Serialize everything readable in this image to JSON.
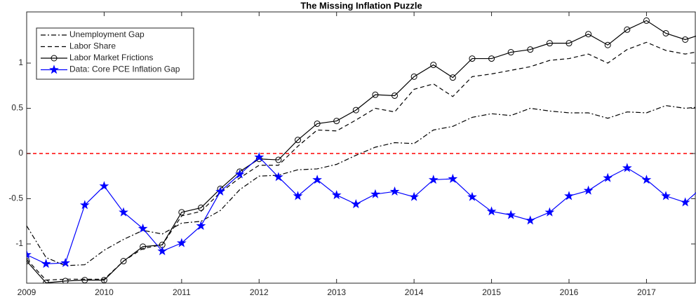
{
  "chart_data": {
    "type": "line",
    "title": "The Missing Inflation Puzzle",
    "x": [
      2009,
      2009.25,
      2009.5,
      2009.75,
      2010,
      2010.25,
      2010.5,
      2010.75,
      2011,
      2011.25,
      2011.5,
      2011.75,
      2012,
      2012.25,
      2012.5,
      2012.75,
      2013,
      2013.25,
      2013.5,
      2013.75,
      2014,
      2014.25,
      2014.5,
      2014.75,
      2015,
      2015.25,
      2015.5,
      2015.75,
      2016,
      2016.25,
      2016.5,
      2016.75,
      2017,
      2017.25,
      2017.5,
      2017.75
    ],
    "series": [
      {
        "name": "Unemployment Gap",
        "color": "#000000",
        "dash": "dashdot",
        "marker": "none",
        "values": [
          -0.8,
          -1.15,
          -1.24,
          -1.23,
          -1.07,
          -0.95,
          -0.85,
          -0.89,
          -0.77,
          -0.75,
          -0.63,
          -0.4,
          -0.25,
          -0.24,
          -0.18,
          -0.17,
          -0.12,
          -0.02,
          0.07,
          0.12,
          0.11,
          0.26,
          0.3,
          0.4,
          0.44,
          0.42,
          0.5,
          0.47,
          0.45,
          0.45,
          0.39,
          0.46,
          0.45,
          0.53,
          0.5,
          0.52
        ]
      },
      {
        "name": "Labor Share",
        "color": "#000000",
        "dash": "dashed",
        "marker": "none",
        "values": [
          -1.17,
          -1.4,
          -1.39,
          -1.39,
          -1.39,
          -1.19,
          -1.05,
          -1.01,
          -0.69,
          -0.64,
          -0.43,
          -0.27,
          -0.13,
          -0.13,
          0.08,
          0.26,
          0.25,
          0.37,
          0.5,
          0.46,
          0.71,
          0.77,
          0.63,
          0.85,
          0.88,
          0.92,
          0.96,
          1.03,
          1.05,
          1.1,
          1.0,
          1.15,
          1.23,
          1.14,
          1.1,
          1.14
        ]
      },
      {
        "name": "Labor Market Frictions",
        "color": "#000000",
        "dash": "solid",
        "marker": "circle",
        "values": [
          -1.19,
          -1.43,
          -1.41,
          -1.4,
          -1.4,
          -1.19,
          -1.03,
          -1.01,
          -0.65,
          -0.6,
          -0.39,
          -0.2,
          -0.06,
          -0.07,
          0.15,
          0.33,
          0.36,
          0.48,
          0.65,
          0.64,
          0.85,
          0.98,
          0.84,
          1.05,
          1.05,
          1.12,
          1.15,
          1.22,
          1.22,
          1.32,
          1.2,
          1.37,
          1.47,
          1.33,
          1.26,
          1.33
        ]
      },
      {
        "name": "Data: Core PCE Inflation Gap",
        "color": "#0000ff",
        "dash": "solid",
        "marker": "star",
        "values": [
          -1.12,
          -1.22,
          -1.21,
          -0.57,
          -0.36,
          -0.65,
          -0.83,
          -1.08,
          -0.99,
          -0.8,
          -0.42,
          -0.23,
          -0.04,
          -0.26,
          -0.47,
          -0.29,
          -0.46,
          -0.56,
          -0.45,
          -0.42,
          -0.48,
          -0.29,
          -0.28,
          -0.48,
          -0.64,
          -0.68,
          -0.74,
          -0.65,
          -0.47,
          -0.41,
          -0.27,
          -0.16,
          -0.29,
          -0.47,
          -0.54,
          -0.35
        ]
      }
    ],
    "reference_line": {
      "value": 0,
      "color": "#ff0000"
    },
    "xlim": [
      2009,
      2017.63
    ],
    "xticks": [
      2009,
      2010,
      2011,
      2012,
      2013,
      2014,
      2015,
      2016,
      2017
    ],
    "ylim": [
      -1.434,
      1.566
    ],
    "yticks": [
      -1,
      -0.5,
      0,
      0.5,
      1
    ],
    "legend": "northwest"
  }
}
